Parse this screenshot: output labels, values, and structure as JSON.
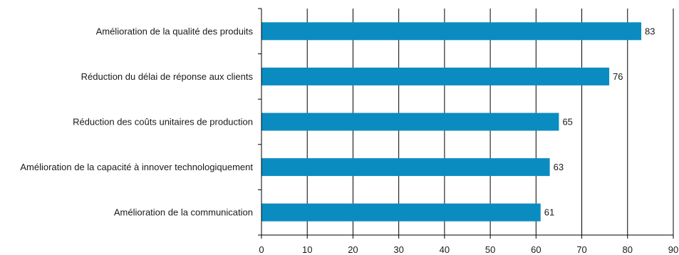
{
  "chart_data": {
    "type": "bar",
    "orientation": "horizontal",
    "categories": [
      "Amélioration de la qualité des produits",
      "Réduction du délai de réponse aux clients",
      "Réduction des coûts unitaires de production",
      "Amélioration de la capacité à innover technologiquement",
      "Amélioration de la communication"
    ],
    "values": [
      83,
      76,
      65,
      63,
      61
    ],
    "data_labels": [
      "83",
      "76",
      "65",
      "63",
      "61"
    ],
    "xlim": [
      0,
      90
    ],
    "x_ticks": [
      "0",
      "10",
      "20",
      "30",
      "40",
      "50",
      "60",
      "70",
      "80",
      "90"
    ],
    "grid": "vertical",
    "bar_color": "#0b8cc1",
    "gridline_color": "#000000"
  }
}
